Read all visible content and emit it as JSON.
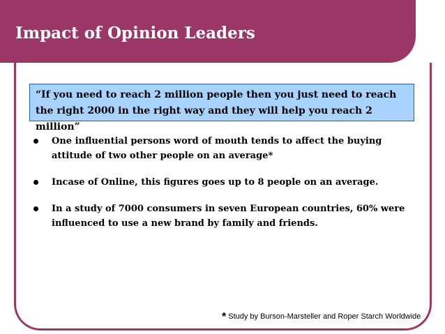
{
  "slide": {
    "title": "Impact of Opinion Leaders",
    "quote": "“If you need to reach 2 million people then you just need to reach the right 2000 in the right way and they will help you reach 2 million”",
    "bullets": [
      "One influential persons word of mouth tends to affect the buying attitude of two other people on an average*",
      "Incase of Online, this figures goes up to 8 people on an average.",
      "In a study of 7000 consumers in seven European countries, 60% were influenced to use a new brand by family and friends."
    ],
    "footnote_marker": "*",
    "footnote": "Study by Burson-Marsteller and Roper Starch Worldwide"
  },
  "colors": {
    "header": "#9a3766",
    "quote_background": "#a9d3ff",
    "quote_border": "#1f5fbf"
  }
}
